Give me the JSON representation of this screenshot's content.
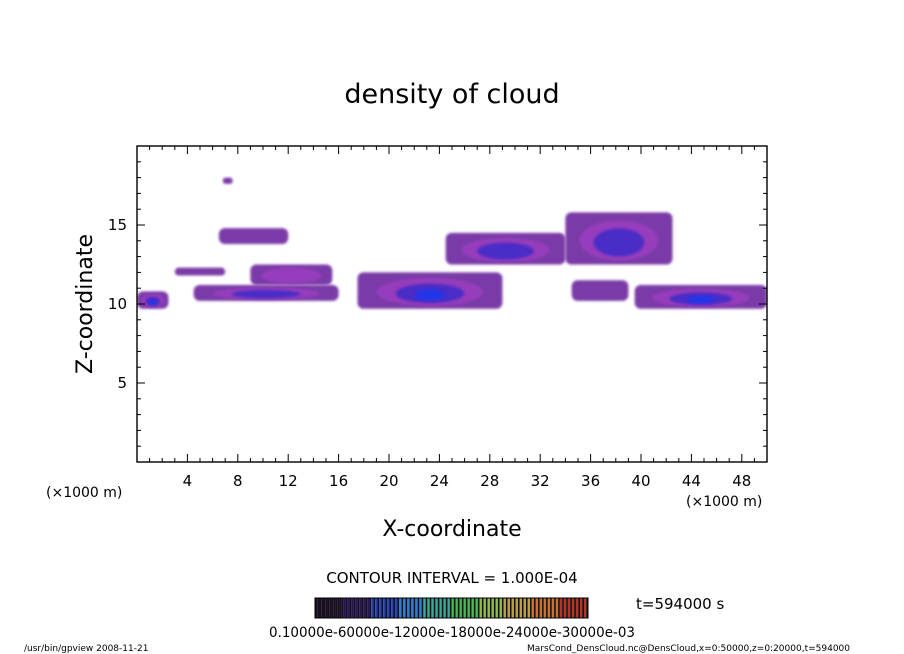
{
  "chart_data": {
    "type": "heatmap",
    "title": "density of cloud",
    "xlabel": "X-coordinate",
    "ylabel": "Z-coordinate",
    "x_unit": "(×1000 m)",
    "xlim": [
      0,
      50
    ],
    "ylim": [
      0,
      20
    ],
    "x_ticks": [
      4,
      8,
      12,
      16,
      20,
      24,
      28,
      32,
      36,
      40,
      44,
      48
    ],
    "y_ticks": [
      5,
      10,
      15
    ],
    "contour_interval_text": "CONTOUR INTERVAL = 1.000E-04",
    "time_text": "t=594000 s",
    "colorbar_labels_text": "0.10000e-60000e-12000e-18000e-24000e-30000e-03",
    "colors": {
      "purple": "#7a3aa8",
      "magenta": "#9c3cc0",
      "indigo": "#3c2cc8",
      "blue": "#1a38f0",
      "colorbar": [
        "#1a0a2a",
        "#2a1060",
        "#2040c0",
        "#2a80e0",
        "#30b0a0",
        "#40c050",
        "#90c040",
        "#c0a040",
        "#d07030",
        "#c03020"
      ]
    },
    "cloud_regions": [
      {
        "name": "left-edge band",
        "x": [
          0,
          2.5
        ],
        "z": [
          9.7,
          10.8
        ],
        "peak": 0.0005
      },
      {
        "name": "isolated cell",
        "x": [
          6.8,
          7.6
        ],
        "z": [
          17.6,
          18.0
        ],
        "peak": 0.0001
      },
      {
        "name": "upper cell",
        "x": [
          6.5,
          12
        ],
        "z": [
          13.8,
          14.8
        ],
        "peak": 0.00015
      },
      {
        "name": "left arm",
        "x": [
          3,
          7
        ],
        "z": [
          11.8,
          12.3
        ],
        "peak": 0.0001
      },
      {
        "name": "lower band",
        "x": [
          4.5,
          16
        ],
        "z": [
          10.2,
          11.2
        ],
        "peak": 0.0003
      },
      {
        "name": "mid cell",
        "x": [
          9,
          15.5
        ],
        "z": [
          11.2,
          12.5
        ],
        "peak": 0.0002
      },
      {
        "name": "main cell",
        "x": [
          17.5,
          29
        ],
        "z": [
          9.7,
          12.0
        ],
        "peak": 0.0008
      },
      {
        "name": "upper right cell",
        "x": [
          24.5,
          34
        ],
        "z": [
          12.5,
          14.5
        ],
        "peak": 0.00025
      },
      {
        "name": "high cell",
        "x": [
          34,
          42.5
        ],
        "z": [
          12.5,
          15.8
        ],
        "peak": 0.0003
      },
      {
        "name": "trailing arm",
        "x": [
          34.5,
          39
        ],
        "z": [
          10.2,
          11.5
        ],
        "peak": 0.0001
      },
      {
        "name": "right band",
        "x": [
          39.5,
          50
        ],
        "z": [
          9.7,
          11.2
        ],
        "peak": 0.0006
      }
    ],
    "footer_left": "/usr/bin/gpview   2008-11-21",
    "footer_right": "MarsCond_DensCloud.nc@DensCloud,x=0:50000,z=0:20000,t=594000"
  }
}
